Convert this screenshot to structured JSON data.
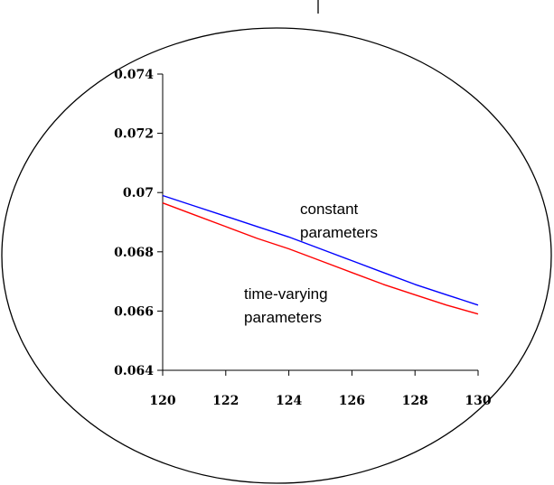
{
  "chart_data": {
    "type": "line",
    "title": "",
    "xlabel": "",
    "ylabel": "",
    "xlim": [
      120,
      130
    ],
    "ylim": [
      0.064,
      0.074
    ],
    "x_ticks": [
      120,
      122,
      124,
      126,
      128,
      130
    ],
    "x_tick_labels": [
      "120",
      "122",
      "124",
      "126",
      "128",
      "130"
    ],
    "y_ticks": [
      0.064,
      0.066,
      0.068,
      0.07,
      0.072,
      0.074
    ],
    "y_tick_labels": [
      "0.064",
      "0.066",
      "0.068",
      "0.07",
      "0.072",
      "0.074"
    ],
    "grid": false,
    "legend": "none",
    "series": [
      {
        "name": "constant parameters",
        "color": "#0000ff",
        "x": [
          120,
          121,
          122,
          123,
          124,
          125,
          126,
          127,
          128,
          129,
          130
        ],
        "values": [
          0.0699,
          0.06955,
          0.0692,
          0.06885,
          0.0685,
          0.0681,
          0.0677,
          0.0673,
          0.0669,
          0.06655,
          0.0662
        ]
      },
      {
        "name": "time-varying parameters",
        "color": "#ff0000",
        "x": [
          120,
          121,
          122,
          123,
          124,
          125,
          126,
          127,
          128,
          129,
          130
        ],
        "values": [
          0.06965,
          0.06925,
          0.06885,
          0.06845,
          0.0681,
          0.0677,
          0.0673,
          0.0669,
          0.06655,
          0.0662,
          0.0659
        ]
      }
    ],
    "annotations": [
      {
        "id": "annotation-constant",
        "lines": [
          "constant",
          "parameters"
        ]
      },
      {
        "id": "annotation-time-varying",
        "lines": [
          "time-varying",
          "parameters"
        ]
      }
    ]
  }
}
